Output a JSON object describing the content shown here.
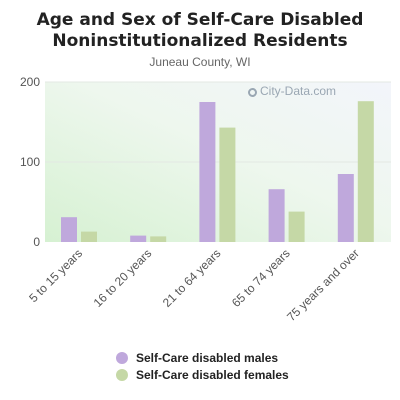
{
  "title_line1": "Age and Sex of Self-Care Disabled",
  "title_line2": "Noninstitutionalized Residents",
  "subtitle": "Juneau County, WI",
  "watermark": "City-Data.com",
  "colors": {
    "males": "#bfa8dc",
    "females": "#c5d8a6"
  },
  "chart_data": {
    "type": "bar",
    "categories": [
      "5 to 15 years",
      "16 to 20 years",
      "21 to 64 years",
      "65 to 74 years",
      "75 years and over"
    ],
    "series": [
      {
        "name": "Self-Care disabled males",
        "values": [
          31,
          8,
          175,
          66,
          85
        ]
      },
      {
        "name": "Self-Care disabled females",
        "values": [
          13,
          7,
          143,
          38,
          176
        ]
      }
    ],
    "yticks": [
      0,
      100,
      200
    ],
    "ylim": [
      0,
      200
    ],
    "grid": true,
    "legend_position": "bottom"
  }
}
